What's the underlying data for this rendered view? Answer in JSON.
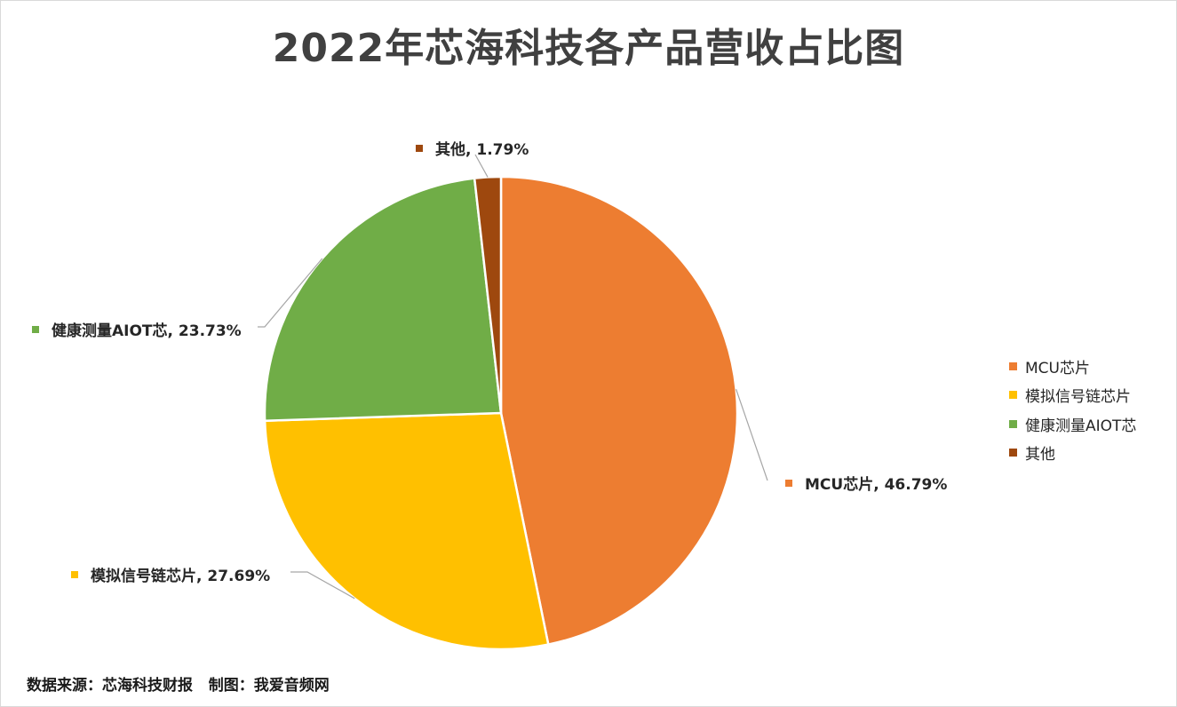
{
  "chart_data": {
    "type": "pie",
    "title": "2022年芯海科技各产品营收占比图",
    "categories": [
      "MCU芯片",
      "模拟信号链芯片",
      "健康测量AIOT芯",
      "其他"
    ],
    "values": [
      46.79,
      27.69,
      23.73,
      1.79
    ],
    "unit": "%",
    "data_labels": [
      "MCU芯片, 46.79%",
      "模拟信号链芯片, 27.69%",
      "健康测量AIOT芯, 23.73%",
      "其他, 1.79%"
    ],
    "colors": [
      "#ED7D31",
      "#FFC000",
      "#70AD47",
      "#9E480E"
    ],
    "legend_placement": "right",
    "grid": false
  },
  "source_note": "数据来源：芯海科技财报   制图：我爱音频网"
}
